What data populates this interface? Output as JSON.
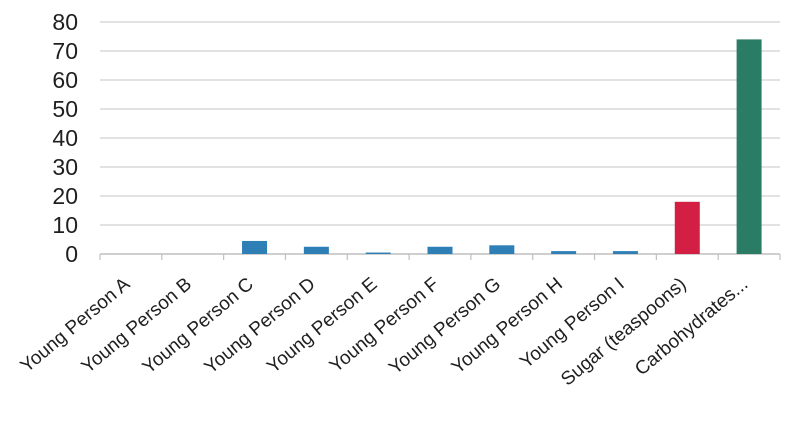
{
  "chart_data": {
    "type": "bar",
    "categories": [
      "Young Person A",
      "Young Person B",
      "Young Person C",
      "Young Person D",
      "Young Person E",
      "Young Person F",
      "Young Person G",
      "Young Person H",
      "Young Person I",
      "Sugar (teaspoons)",
      "Carbohydrates..."
    ],
    "values": [
      0,
      0,
      4.5,
      2.5,
      0.5,
      2.5,
      3,
      1,
      1,
      18,
      74
    ],
    "bar_colors": [
      "#2d7fb6",
      "#2d7fb6",
      "#2d7fb6",
      "#2d7fb6",
      "#2d7fb6",
      "#2d7fb6",
      "#2d7fb6",
      "#2d7fb6",
      "#2d7fb6",
      "#d21f43",
      "#2a7d64"
    ],
    "ylim": [
      0,
      80
    ],
    "yticks": [
      0,
      10,
      20,
      30,
      40,
      50,
      60,
      70,
      80
    ],
    "grid": true,
    "legend": "none",
    "title": "",
    "xlabel": "",
    "ylabel": ""
  }
}
